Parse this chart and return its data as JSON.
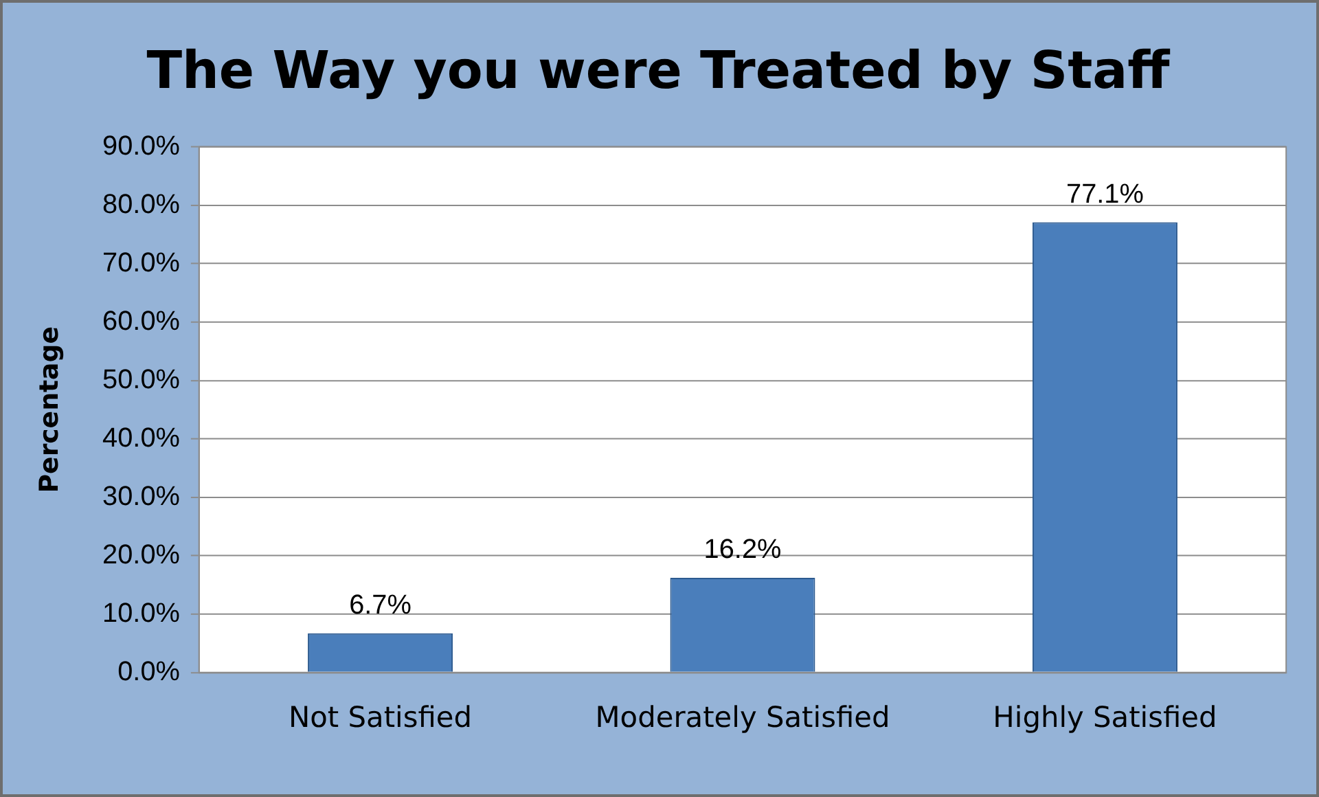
{
  "chart_data": {
    "type": "bar",
    "title": "The Way you were Treated by Staff",
    "ylabel": "Percentage",
    "categories": [
      "Not Satisfied",
      "Moderately Satisfied",
      "Highly Satisfied"
    ],
    "values": [
      6.7,
      16.2,
      77.1
    ],
    "color": "#4a7ebb",
    "value_labels": [
      "6.7%",
      "16.2%",
      "77.1%"
    ],
    "ylim": [
      0,
      90
    ],
    "yticks": [
      {
        "value": 0,
        "label": "0.0%"
      },
      {
        "value": 10,
        "label": "10.0%"
      },
      {
        "value": 20,
        "label": "20.0%"
      },
      {
        "value": 30,
        "label": "30.0%"
      },
      {
        "value": 40,
        "label": "40.0%"
      },
      {
        "value": 50,
        "label": "50.0%"
      },
      {
        "value": 60,
        "label": "60.0%"
      },
      {
        "value": 70,
        "label": "70.0%"
      },
      {
        "value": 80,
        "label": "80.0%"
      },
      {
        "value": 90,
        "label": "90.0%"
      }
    ],
    "grid": "y",
    "legend": false
  }
}
